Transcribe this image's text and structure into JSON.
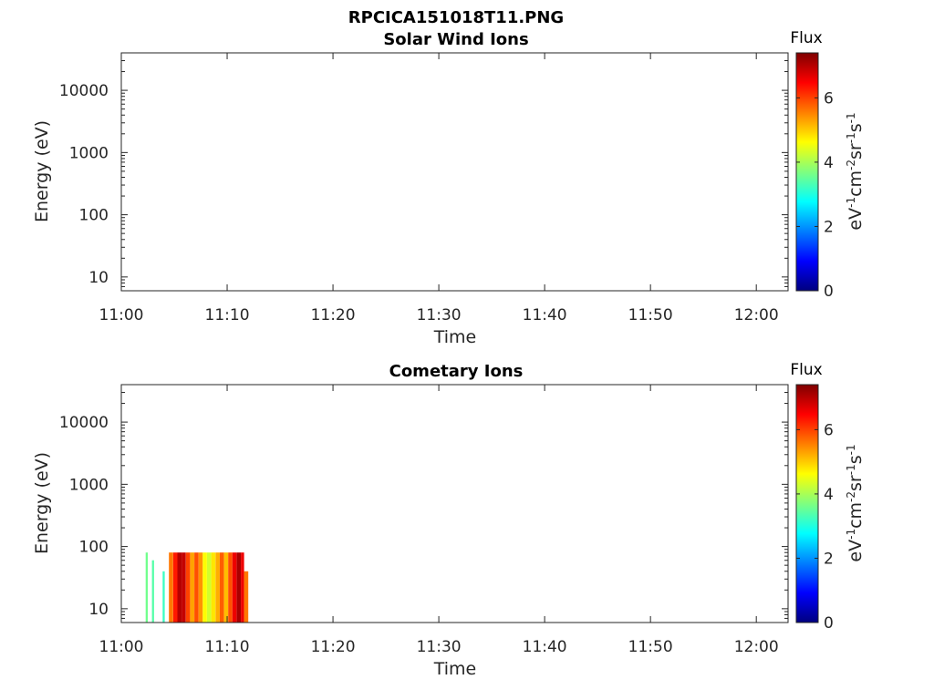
{
  "figure_title": "RPCICA151018T11.PNG",
  "colors": {
    "axis": "#262626",
    "colormap": [
      "#00007f",
      "#0000ff",
      "#007fff",
      "#00ffff",
      "#7fff7f",
      "#ffff00",
      "#ff7f00",
      "#ff0000",
      "#7f0000"
    ]
  },
  "chart_data": [
    {
      "type": "heatmap",
      "title": "Solar Wind Ions",
      "xlabel": "Time",
      "ylabel": "Energy (eV)",
      "x_ticks": [
        "11:00",
        "11:10",
        "11:20",
        "11:30",
        "11:40",
        "11:50",
        "12:00"
      ],
      "x_tick_minutes": [
        0,
        10,
        20,
        30,
        40,
        50,
        60
      ],
      "xlim_minutes": [
        0,
        63
      ],
      "y_scale": "log",
      "y_ticks": [
        "10",
        "100",
        "1000",
        "10000"
      ],
      "y_tick_values": [
        10,
        100,
        1000,
        10000
      ],
      "ylim": [
        6,
        40000
      ],
      "colorbar": {
        "title": "Flux",
        "label": "eV-1cm-2sr-1s-1",
        "ticks": [
          "0",
          "2",
          "4",
          "6"
        ],
        "tick_values": [
          0,
          2,
          4,
          6
        ],
        "range": [
          0,
          7.4
        ]
      },
      "cells": []
    },
    {
      "type": "heatmap",
      "title": "Cometary Ions",
      "xlabel": "Time",
      "ylabel": "Energy (eV)",
      "x_ticks": [
        "11:00",
        "11:10",
        "11:20",
        "11:30",
        "11:40",
        "11:50",
        "12:00"
      ],
      "x_tick_minutes": [
        0,
        10,
        20,
        30,
        40,
        50,
        60
      ],
      "xlim_minutes": [
        0,
        63
      ],
      "y_scale": "log",
      "y_ticks": [
        "10",
        "100",
        "1000",
        "10000"
      ],
      "y_tick_values": [
        10,
        100,
        1000,
        10000
      ],
      "ylim": [
        6,
        40000
      ],
      "colorbar": {
        "title": "Flux",
        "label": "eV-1cm-2sr-1s-1",
        "ticks": [
          "0",
          "2",
          "4",
          "6"
        ],
        "tick_values": [
          0,
          2,
          4,
          6
        ],
        "range": [
          0,
          7.4
        ]
      },
      "active_interval_minutes": [
        4.5,
        12.0
      ],
      "energy_range_eV": [
        6,
        80
      ],
      "cells": [
        {
          "t0": 2.3,
          "t1": 2.5,
          "e0": 6,
          "e1": 80,
          "v": 3.6
        },
        {
          "t0": 2.9,
          "t1": 3.1,
          "e0": 6,
          "e1": 60,
          "v": 3.4
        },
        {
          "t0": 3.9,
          "t1": 4.1,
          "e0": 6,
          "e1": 40,
          "v": 3.2
        },
        {
          "t0": 4.5,
          "t1": 4.9,
          "e0": 6,
          "e1": 80,
          "v": 5.6
        },
        {
          "t0": 4.9,
          "t1": 5.3,
          "e0": 6,
          "e1": 80,
          "v": 6.3
        },
        {
          "t0": 5.3,
          "t1": 5.7,
          "e0": 6,
          "e1": 80,
          "v": 7.0
        },
        {
          "t0": 5.7,
          "t1": 6.1,
          "e0": 6,
          "e1": 80,
          "v": 6.9
        },
        {
          "t0": 6.1,
          "t1": 6.5,
          "e0": 6,
          "e1": 80,
          "v": 6.0
        },
        {
          "t0": 6.5,
          "t1": 6.9,
          "e0": 6,
          "e1": 80,
          "v": 5.3
        },
        {
          "t0": 6.9,
          "t1": 7.3,
          "e0": 6,
          "e1": 80,
          "v": 5.9
        },
        {
          "t0": 7.3,
          "t1": 7.7,
          "e0": 6,
          "e1": 80,
          "v": 5.4
        },
        {
          "t0": 7.7,
          "t1": 8.1,
          "e0": 6,
          "e1": 80,
          "v": 4.6
        },
        {
          "t0": 8.1,
          "t1": 8.5,
          "e0": 6,
          "e1": 80,
          "v": 4.3
        },
        {
          "t0": 8.5,
          "t1": 8.9,
          "e0": 6,
          "e1": 80,
          "v": 4.8
        },
        {
          "t0": 8.9,
          "t1": 9.3,
          "e0": 6,
          "e1": 80,
          "v": 5.2
        },
        {
          "t0": 9.3,
          "t1": 9.7,
          "e0": 6,
          "e1": 80,
          "v": 5.8
        },
        {
          "t0": 9.7,
          "t1": 10.1,
          "e0": 6,
          "e1": 80,
          "v": 5.1
        },
        {
          "t0": 10.1,
          "t1": 10.5,
          "e0": 6,
          "e1": 80,
          "v": 5.9
        },
        {
          "t0": 10.5,
          "t1": 10.9,
          "e0": 6,
          "e1": 80,
          "v": 6.6
        },
        {
          "t0": 10.9,
          "t1": 11.3,
          "e0": 6,
          "e1": 80,
          "v": 7.1
        },
        {
          "t0": 11.3,
          "t1": 11.6,
          "e0": 6,
          "e1": 80,
          "v": 6.6
        },
        {
          "t0": 11.6,
          "t1": 12.0,
          "e0": 6,
          "e1": 40,
          "v": 5.6
        }
      ]
    }
  ]
}
